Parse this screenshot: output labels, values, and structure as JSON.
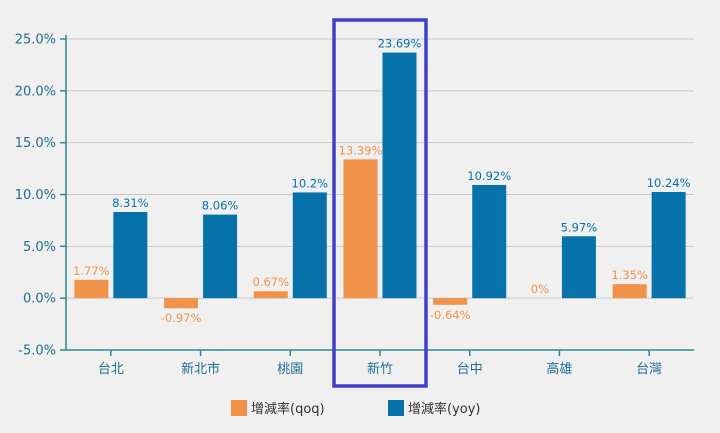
{
  "chart_data": {
    "type": "bar",
    "categories": [
      "台北",
      "新北市",
      "桃園",
      "新竹",
      "台中",
      "高雄",
      "台灣"
    ],
    "series": [
      {
        "name": "增減率(qoq)",
        "color": "#f0924a",
        "values": [
          1.77,
          -0.97,
          0.67,
          13.39,
          -0.64,
          0,
          1.35
        ],
        "labels": [
          "1.77%",
          "-0.97%",
          "0.67%",
          "13.39%",
          "-0.64%",
          "0%",
          "1.35%"
        ]
      },
      {
        "name": "增減率(yoy)",
        "color": "#0772a9",
        "values": [
          8.31,
          8.06,
          10.2,
          23.69,
          10.92,
          5.97,
          10.24
        ],
        "labels": [
          "8.31%",
          "8.06%",
          "10.2%",
          "23.69%",
          "10.92%",
          "5.97%",
          "10.24%"
        ]
      }
    ],
    "yticks": [
      "25.0%",
      "20.0%",
      "15.0%",
      "10.0%",
      "5.0%",
      "0.0%",
      "-5.0%"
    ],
    "ytick_values": [
      25,
      20,
      15,
      10,
      5,
      0,
      -5
    ],
    "ylim": [
      -5,
      25
    ],
    "grid": true,
    "legend_position": "bottom-center",
    "highlight_category": "新竹",
    "highlight_color": "#3f3fc8",
    "title": "",
    "xlabel": "",
    "ylabel": ""
  }
}
